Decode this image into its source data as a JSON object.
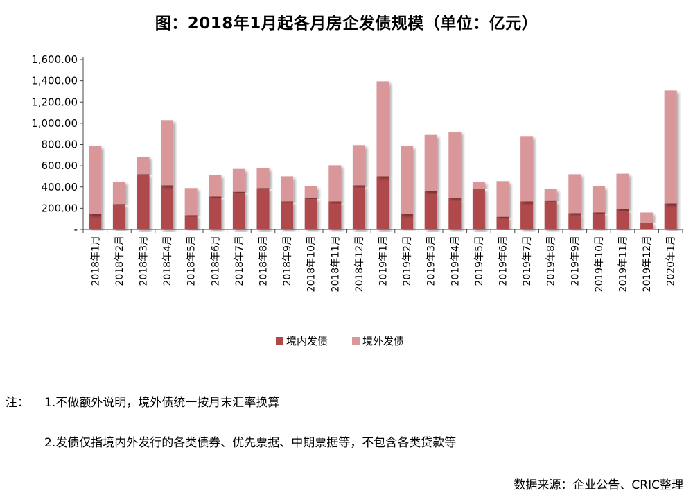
{
  "title": "图：2018年1月起各月房企发债规模（单位：亿元）",
  "chart_data": {
    "type": "bar",
    "stacked": true,
    "title": "图：2018年1月起各月房企发债规模（单位：亿元）",
    "categories": [
      "2018年1月",
      "2018年2月",
      "2018年3月",
      "2018年4月",
      "2018年5月",
      "2018年6月",
      "2018年7月",
      "2018年8月",
      "2018年9月",
      "2018年10月",
      "2018年11月",
      "2018年12月",
      "2019年1月",
      "2019年2月",
      "2019年3月",
      "2019年4月",
      "2019年5月",
      "2019年6月",
      "2019年7月",
      "2019年8月",
      "2019年9月",
      "2019年10月",
      "2019年11月",
      "2019年12月",
      "2020年1月"
    ],
    "series": [
      {
        "name": "境内发债",
        "color": "#b0484b",
        "values": [
          145,
          240,
          520,
          415,
          135,
          310,
          355,
          390,
          265,
          295,
          265,
          415,
          500,
          145,
          360,
          300,
          385,
          120,
          265,
          270,
          155,
          160,
          190,
          65,
          245
        ]
      },
      {
        "name": "境外发债",
        "color": "#d9979a",
        "values": [
          640,
          210,
          165,
          615,
          255,
          200,
          215,
          190,
          235,
          110,
          340,
          380,
          895,
          640,
          530,
          620,
          65,
          335,
          615,
          110,
          365,
          245,
          335,
          95,
          1065
        ]
      }
    ],
    "yticks": [
      "-",
      "200.00",
      "400.00",
      "600.00",
      "800.00",
      "1,000.00",
      "1,200.00",
      "1,400.00",
      "1,600.00"
    ],
    "ylim": [
      0,
      1600
    ],
    "legend_position": "bottom",
    "grid": false
  },
  "notes": {
    "prefix": "注：",
    "line1": "1.不做额外说明，境外债统一按月末汇率换算",
    "line2": "2.发债仅指境内外发行的各类债券、优先票据、中期票据等，不包含各类贷款等"
  },
  "source": "数据来源：企业公告、CRIC整理"
}
